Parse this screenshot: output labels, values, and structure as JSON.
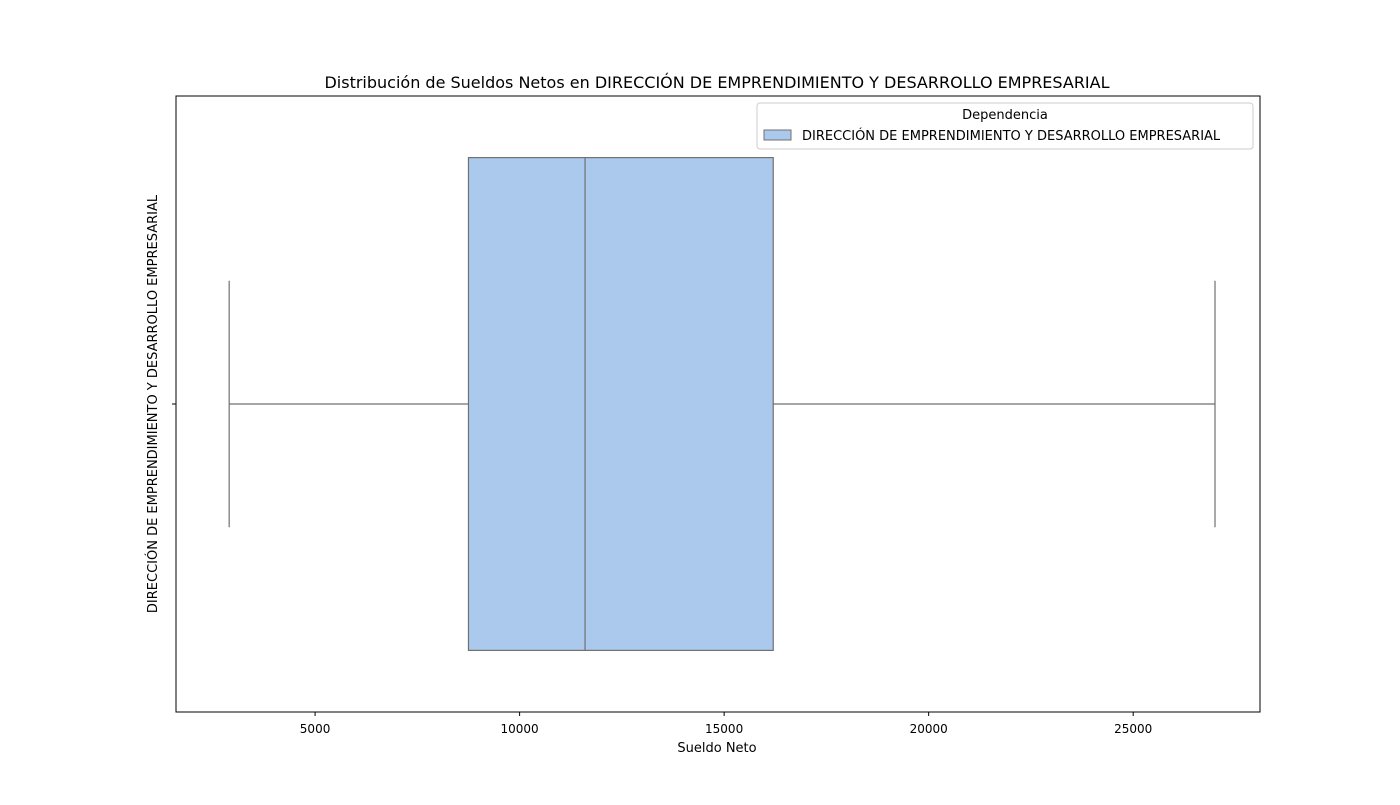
{
  "chart_data": {
    "type": "box",
    "title": "Distribución de Sueldos Netos en DIRECCIÓN DE EMPRENDIMIENTO Y DESARROLLO EMPRESARIAL",
    "xlabel": "Sueldo Neto",
    "ylabel": "DIRECCIÓN DE EMPRENDIMIENTO Y DESARROLLO EMPRESARIAL",
    "xlim": [
      1600,
      28100
    ],
    "xticks": [
      5000,
      10000,
      15000,
      20000,
      25000
    ],
    "xtick_labels": [
      "5000",
      "10000",
      "15000",
      "20000",
      "25000"
    ],
    "categories": [
      "DIRECCIÓN DE EMPRENDIMIENTO Y DESARROLLO EMPRESARIAL"
    ],
    "boxes": [
      {
        "category": "DIRECCIÓN DE EMPRENDIMIENTO Y DESARROLLO EMPRESARIAL",
        "whisker_low": 2900,
        "q1": 8750,
        "median": 11600,
        "q3": 16200,
        "whisker_high": 27000
      }
    ],
    "legend": {
      "title": "Dependencia",
      "entries": [
        "DIRECCIÓN DE EMPRENDIMIENTO Y DESARROLLO EMPRESARIAL"
      ],
      "placement": "top-right"
    },
    "grid": false,
    "colors": {
      "box_fill": "#abc9ed",
      "box_edge": "#707070"
    }
  }
}
